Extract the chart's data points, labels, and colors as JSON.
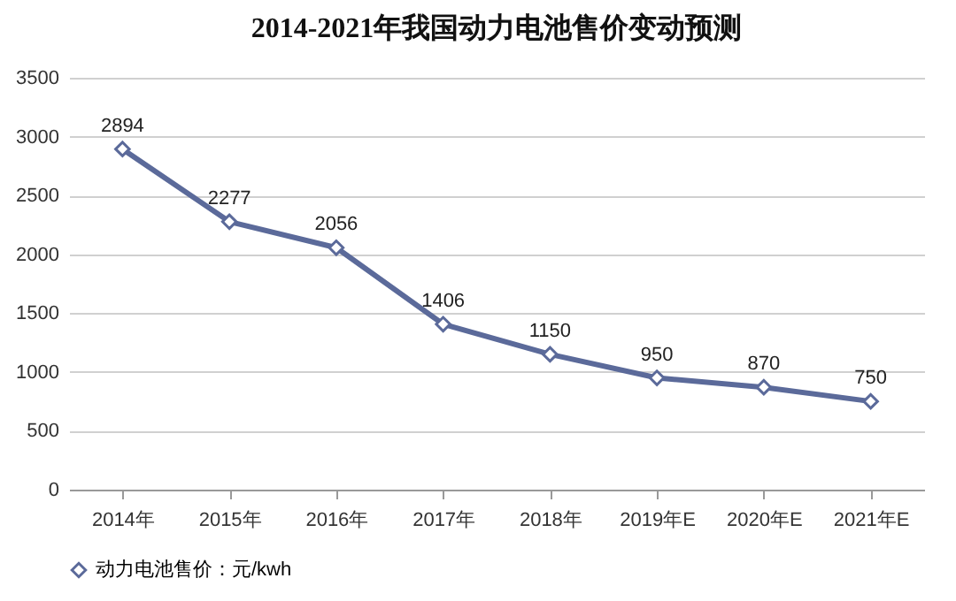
{
  "chart_data": {
    "type": "line",
    "title": "2014-2021年我国动力电池售价变动预测",
    "categories": [
      "2014年",
      "2015年",
      "2016年",
      "2017年",
      "2018年",
      "2019年E",
      "2020年E",
      "2021年E"
    ],
    "series": [
      {
        "name": "动力电池售价：元/kwh",
        "color": "#5b6a9a",
        "values": [
          2894,
          2277,
          2056,
          1406,
          1150,
          950,
          870,
          750
        ]
      }
    ],
    "ylim": [
      0,
      3500
    ],
    "yticks": [
      0,
      500,
      1000,
      1500,
      2000,
      2500,
      3000,
      3500
    ],
    "grid": "y",
    "legend": "bottom",
    "marker": "diamond",
    "line_style": "solid",
    "data_labels": true
  }
}
